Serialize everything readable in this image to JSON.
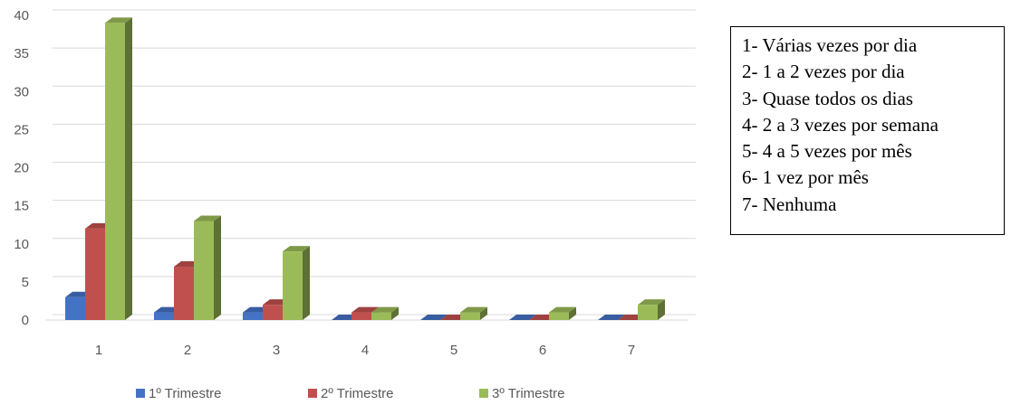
{
  "chart_data": {
    "type": "bar",
    "style": "3d-clustered-column",
    "categories": [
      "1",
      "2",
      "3",
      "4",
      "5",
      "6",
      "7"
    ],
    "series": [
      {
        "name": "1º Trimestre",
        "color": "#4472c4",
        "values": [
          3,
          1,
          1,
          0,
          0,
          0,
          0
        ]
      },
      {
        "name": "2º Trimestre",
        "color": "#c0504d",
        "values": [
          12,
          7,
          2,
          1,
          0,
          0,
          0
        ]
      },
      {
        "name": "3º Trimestre",
        "color": "#9bbb59",
        "values": [
          39,
          13,
          9,
          1,
          1,
          1,
          2
        ]
      }
    ],
    "yticks": [
      "0",
      "5",
      "10",
      "15",
      "20",
      "25",
      "30",
      "35",
      "40"
    ],
    "ylim": [
      0,
      40
    ],
    "grid": true,
    "legend_position": "bottom"
  },
  "key": {
    "items": [
      "1- Várias vezes por dia",
      "2- 1 a 2 vezes por dia",
      "3- Quase todos os dias",
      "4- 2 a 3 vezes por semana",
      "5- 4 a 5 vezes por mês",
      "6- 1 vez por mês",
      "7- Nenhuma"
    ]
  }
}
